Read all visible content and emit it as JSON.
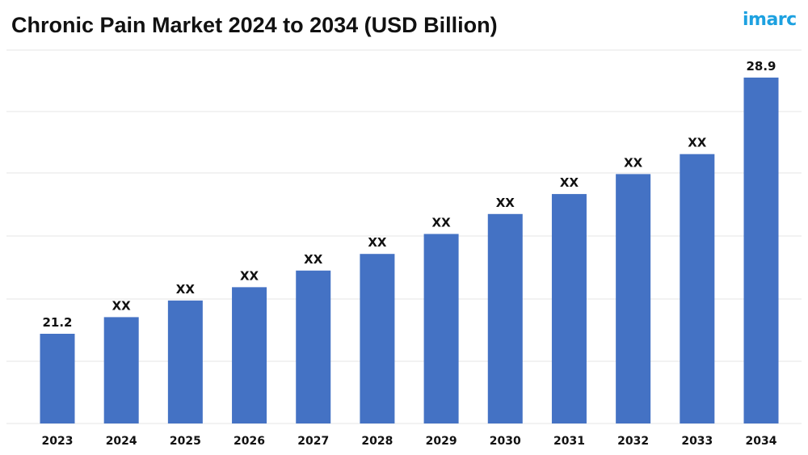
{
  "title": "Chronic Pain Market 2024 to 2034 (USD Billion)",
  "logo": {
    "text": "imarc"
  },
  "colors": {
    "bar": "#4472c4",
    "grid": "#e4e4e4",
    "accent": "#1da1e0"
  },
  "chart_data": {
    "type": "bar",
    "title": "Chronic Pain Market 2024 to 2034 (USD Billion)",
    "xlabel": "",
    "ylabel": "",
    "grid": true,
    "legend": "none",
    "ylim": [
      0,
      32
    ],
    "categories": [
      "2023",
      "2024",
      "2025",
      "2026",
      "2027",
      "2028",
      "2029",
      "2030",
      "2031",
      "2032",
      "2033",
      "2034"
    ],
    "values": [
      21.2,
      21.7,
      22.2,
      22.6,
      23.1,
      23.6,
      24.2,
      24.8,
      25.4,
      26.0,
      26.6,
      28.9
    ],
    "data_labels": [
      "21.2",
      "XX",
      "XX",
      "XX",
      "XX",
      "XX",
      "XX",
      "XX",
      "XX",
      "XX",
      "XX",
      "28.9"
    ]
  }
}
